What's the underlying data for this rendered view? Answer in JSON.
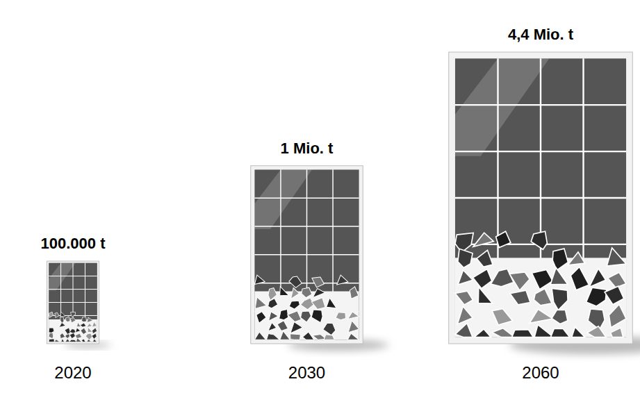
{
  "chart_data": {
    "type": "pictogram",
    "categories": [
      "2020",
      "2030",
      "2060"
    ],
    "values": [
      100000,
      1000000,
      4400000
    ],
    "value_labels": [
      "100.000 t",
      "1 Mio. t",
      "4,4 Mio. t"
    ],
    "data_labels": true,
    "tick_labels": "x",
    "color": "#555555"
  }
}
